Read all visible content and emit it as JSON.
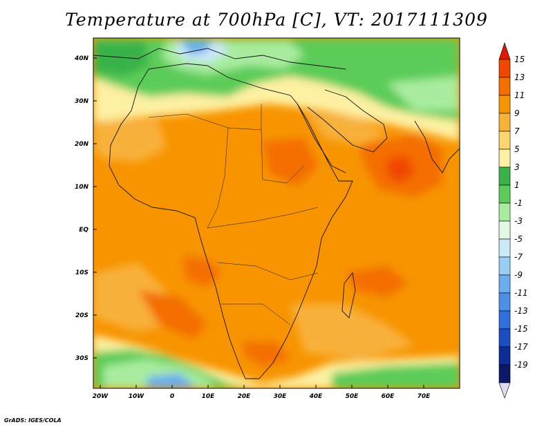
{
  "title": "Temperature at 700hPa [C], VT: 2017111309",
  "credit": "GrADS: IGES/COLA",
  "lat_labels": [
    "40N",
    "30N",
    "20N",
    "10N",
    "EQ",
    "10S",
    "20S",
    "30S"
  ],
  "lon_labels": [
    "20W",
    "10W",
    "0",
    "10E",
    "20E",
    "30E",
    "40E",
    "50E",
    "60E",
    "70E"
  ],
  "colorbar": {
    "labels": [
      "15",
      "13",
      "11",
      "9",
      "7",
      "5",
      "3",
      "1",
      "-1",
      "-3",
      "-5",
      "-7",
      "-9",
      "-11",
      "-13",
      "-15",
      "-17",
      "-19"
    ],
    "colors": [
      "#dd1a00",
      "#f04600",
      "#f46e00",
      "#f79400",
      "#f8b13a",
      "#fcd56c",
      "#fdf0a2",
      "#39b24a",
      "#5bcc58",
      "#a9ec9f",
      "#e4f8e4",
      "#cce9fa",
      "#99cdf4",
      "#6baeee",
      "#4c90e6",
      "#2f70dc",
      "#1a4ec2",
      "#0c2d96",
      "#0a1a66"
    ],
    "under_color": "#dddaf2"
  },
  "map": {
    "variable": "Temperature at 700hPa",
    "units": "C",
    "valid_time": "2017111309",
    "lon_range": [
      -20,
      80
    ],
    "lat_range": [
      -37,
      45
    ],
    "projection": "latlon",
    "region": "Africa, Middle East, Arabian Sea"
  }
}
